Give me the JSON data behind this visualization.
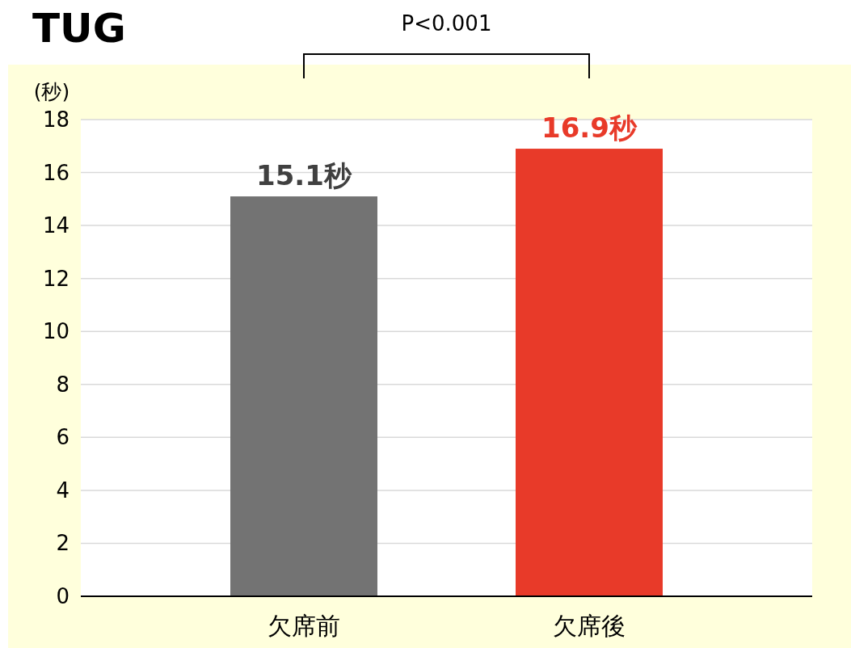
{
  "chart_data": {
    "type": "bar",
    "title": "TUG",
    "ylabel": "(秒)",
    "annotations": [
      "P<0.001"
    ],
    "categories": [
      "欠席前",
      "欠席後"
    ],
    "values": [
      15.1,
      16.9
    ],
    "colors": [
      "#737373",
      "#e83a29"
    ],
    "value_labels": [
      "15.1秒",
      "16.9秒"
    ],
    "ylim": [
      0,
      18
    ],
    "yticks": [
      0,
      2,
      4,
      6,
      8,
      10,
      12,
      14,
      16,
      18
    ],
    "grid": "y"
  }
}
